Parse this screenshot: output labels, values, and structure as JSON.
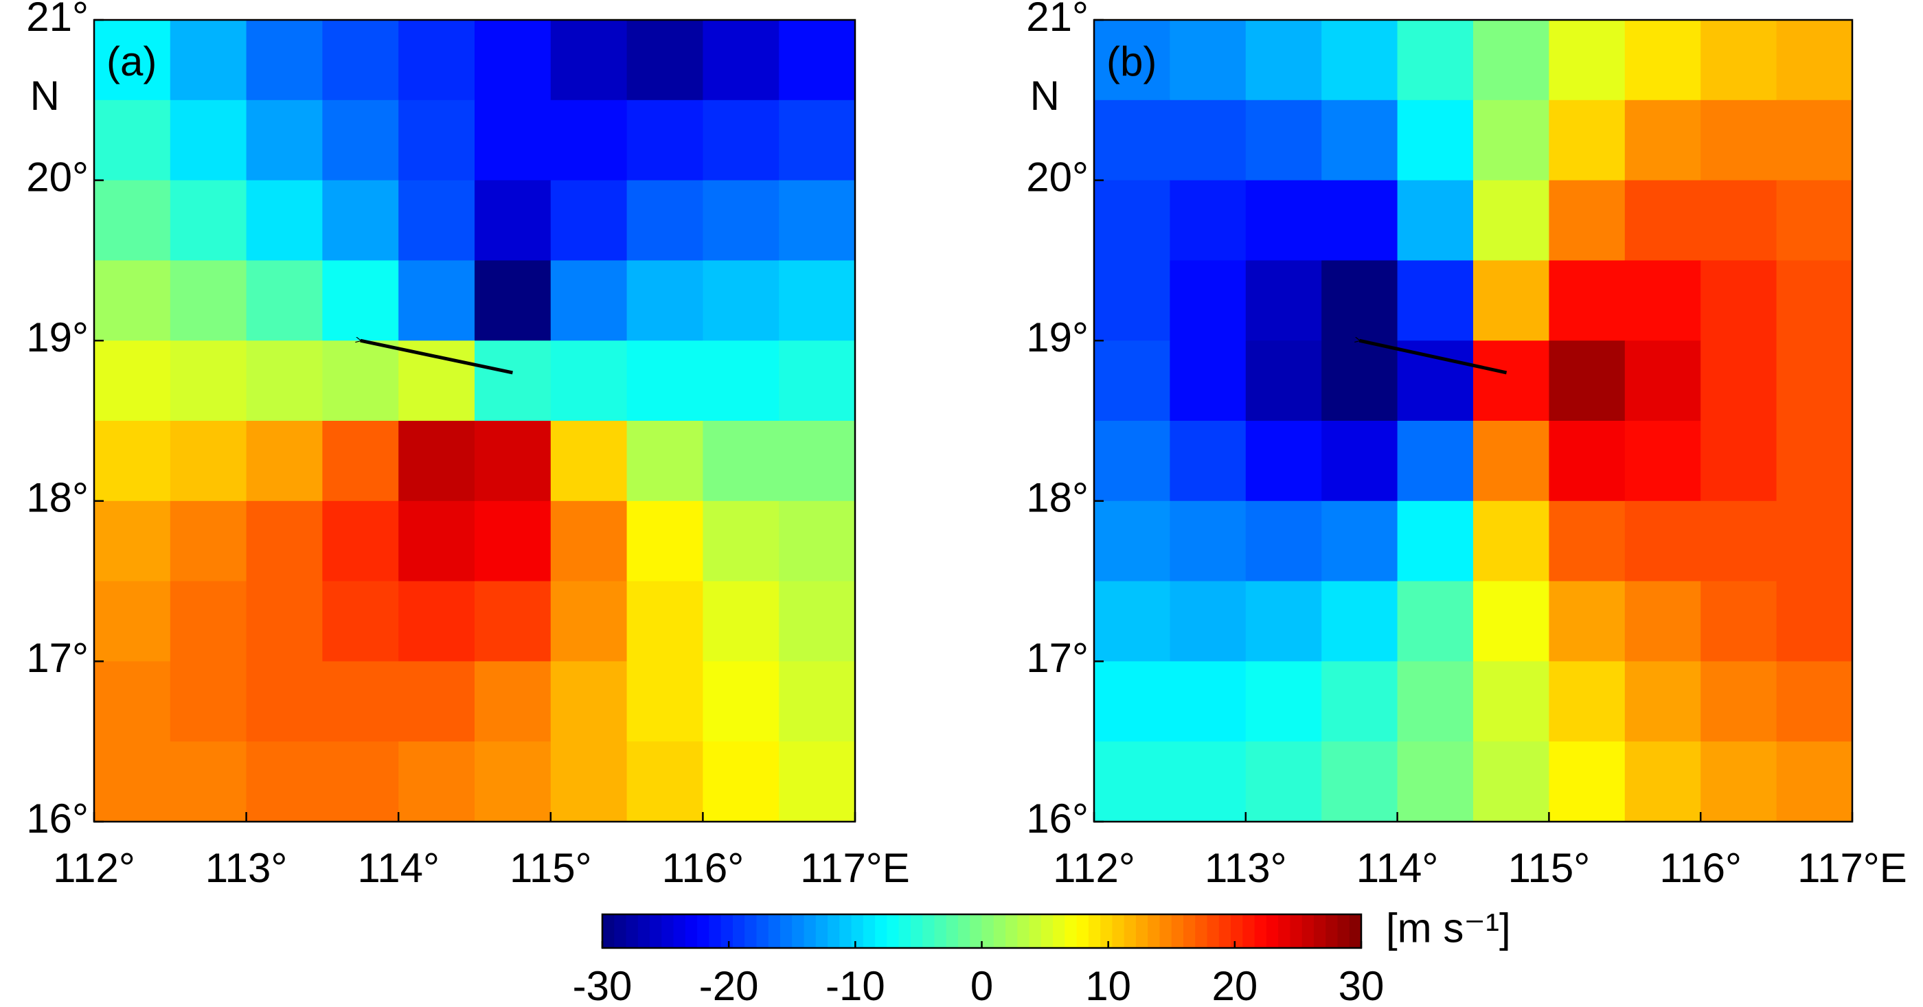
{
  "chart_data": [
    {
      "type": "contour",
      "label": "(a)",
      "x": [
        112.25,
        112.75,
        113.25,
        113.75,
        114.25,
        114.75,
        115.25,
        115.75,
        116.25,
        116.75
      ],
      "y": [
        20.75,
        20.25,
        19.75,
        19.25,
        18.75,
        18.25,
        17.75,
        17.25,
        16.75,
        16.25
      ],
      "z": [
        [
          -8,
          -12,
          -16,
          -18,
          -20,
          -22,
          -26,
          -28,
          -25,
          -22
        ],
        [
          -5,
          -9,
          -13,
          -16,
          -19,
          -22,
          -22,
          -21,
          -20,
          -19
        ],
        [
          -2,
          -5,
          -9,
          -13,
          -18,
          -25,
          -20,
          -17,
          -16,
          -15
        ],
        [
          2,
          0,
          -3,
          -7,
          -15,
          -30,
          -15,
          -12,
          -11,
          -10
        ],
        [
          6,
          5,
          4,
          3,
          5,
          -5,
          -6,
          -7,
          -7,
          -6
        ],
        [
          10,
          11,
          13,
          17,
          26,
          25,
          10,
          3,
          0,
          0
        ],
        [
          13,
          15,
          17,
          20,
          24,
          23,
          15,
          8,
          4,
          3
        ],
        [
          14,
          16,
          17,
          19,
          20,
          19,
          14,
          9,
          6,
          4
        ],
        [
          15,
          16,
          17,
          17,
          17,
          15,
          12,
          9,
          7,
          5
        ],
        [
          15,
          15,
          16,
          16,
          15,
          14,
          12,
          10,
          8,
          6
        ]
      ],
      "arrow": {
        "x": [
          114.75,
          113.75
        ],
        "y": [
          18.8,
          19.0
        ]
      },
      "xlim": [
        112,
        117
      ],
      "ylim": [
        16,
        21
      ],
      "xticks": [
        {
          "value": 112,
          "label": "112°"
        },
        {
          "value": 113,
          "label": "113°"
        },
        {
          "value": 114,
          "label": "114°"
        },
        {
          "value": 115,
          "label": "115°"
        },
        {
          "value": 116,
          "label": "116°"
        },
        {
          "value": 117,
          "label": "117°E"
        }
      ],
      "yticks": [
        {
          "value": 16,
          "label": "16°"
        },
        {
          "value": 17,
          "label": "17°"
        },
        {
          "value": 18,
          "label": "18°"
        },
        {
          "value": 19,
          "label": "19°"
        },
        {
          "value": 20,
          "label": "20°"
        },
        {
          "value": 21,
          "label": "21°"
        }
      ],
      "ylabel": "N"
    },
    {
      "type": "contour",
      "label": "(b)",
      "x": [
        112.25,
        112.75,
        113.25,
        113.75,
        114.25,
        114.75,
        115.25,
        115.75,
        116.25,
        116.75
      ],
      "y": [
        20.75,
        20.25,
        19.75,
        19.25,
        18.75,
        18.25,
        17.75,
        17.25,
        16.75,
        16.25
      ],
      "z": [
        [
          -15,
          -14,
          -12,
          -10,
          -5,
          0,
          6,
          9,
          11,
          12
        ],
        [
          -18,
          -18,
          -17,
          -15,
          -8,
          2,
          10,
          14,
          15,
          15
        ],
        [
          -19,
          -21,
          -22,
          -22,
          -12,
          5,
          15,
          18,
          18,
          17
        ],
        [
          -19,
          -22,
          -26,
          -30,
          -20,
          12,
          22,
          22,
          20,
          18
        ],
        [
          -18,
          -22,
          -27,
          -30,
          -25,
          22,
          28,
          24,
          20,
          18
        ],
        [
          -16,
          -19,
          -22,
          -24,
          -16,
          15,
          23,
          22,
          20,
          18
        ],
        [
          -14,
          -15,
          -16,
          -15,
          -8,
          10,
          17,
          18,
          18,
          18
        ],
        [
          -11,
          -12,
          -11,
          -9,
          -3,
          7,
          13,
          15,
          17,
          18
        ],
        [
          -8,
          -8,
          -7,
          -5,
          -1,
          5,
          10,
          13,
          15,
          16
        ],
        [
          -6,
          -6,
          -5,
          -3,
          0,
          4,
          8,
          11,
          13,
          14
        ]
      ],
      "arrow": {
        "x": [
          114.72,
          113.75
        ],
        "y": [
          18.8,
          19.0
        ]
      },
      "xlim": [
        112,
        117
      ],
      "ylim": [
        16,
        21
      ],
      "xticks": [
        {
          "value": 112,
          "label": "112°"
        },
        {
          "value": 113,
          "label": "113°"
        },
        {
          "value": 114,
          "label": "114°"
        },
        {
          "value": 115,
          "label": "115°"
        },
        {
          "value": 116,
          "label": "116°"
        },
        {
          "value": 117,
          "label": "117°E"
        }
      ],
      "yticks": [
        {
          "value": 16,
          "label": "16°"
        },
        {
          "value": 17,
          "label": "17°"
        },
        {
          "value": 18,
          "label": "18°"
        },
        {
          "value": 19,
          "label": "19°"
        },
        {
          "value": 20,
          "label": "20°"
        },
        {
          "value": 21,
          "label": "21°"
        }
      ],
      "ylabel": "N"
    }
  ],
  "colorbar": {
    "colormap": "jet",
    "clim": [
      -30,
      30
    ],
    "ticks": [
      -30,
      -20,
      -10,
      0,
      10,
      20,
      30
    ],
    "label": "[m s⁻¹]"
  }
}
